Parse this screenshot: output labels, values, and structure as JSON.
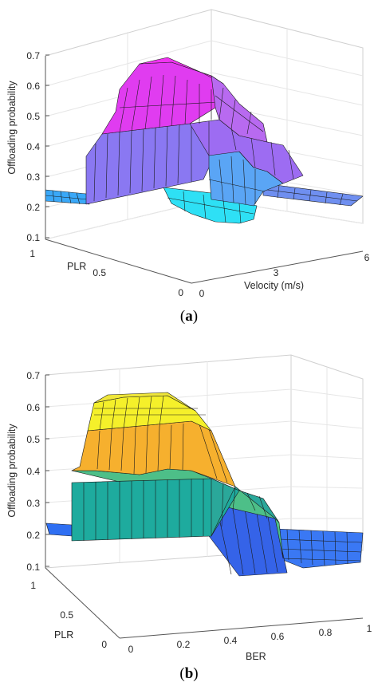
{
  "chart_data": [
    {
      "type": "surface",
      "panel": "(a)",
      "zlabel": "Offloading probability",
      "xlabel": "Velocity (m/s)",
      "ylabel": "PLR",
      "zticks": [
        "0.1",
        "0.2",
        "0.3",
        "0.4",
        "0.5",
        "0.6",
        "0.7"
      ],
      "xticks": [
        "0",
        "3",
        "6"
      ],
      "yticks": [
        "0",
        "0.5",
        "1"
      ],
      "zlim": [
        0.1,
        0.7
      ],
      "xlim": [
        0,
        6
      ],
      "ylim": [
        0,
        1
      ],
      "colormap": "cool",
      "grid": true,
      "surface_levels": [
        {
          "region": "low-PLR plateau / flat outskirts",
          "value": 0.25
        },
        {
          "region": "dip near mid velocity",
          "value": 0.16
        },
        {
          "region": "mid PLR band",
          "value": 0.42
        },
        {
          "region": "peak at high PLR, low-mid velocity",
          "value": 0.65
        }
      ]
    },
    {
      "type": "surface",
      "panel": "(b)",
      "zlabel": "Offloading probability",
      "xlabel": "BER",
      "ylabel": "PLR",
      "zticks": [
        "0.1",
        "0.2",
        "0.3",
        "0.4",
        "0.5",
        "0.6",
        "0.7"
      ],
      "xticks": [
        "0",
        "0.2",
        "0.4",
        "0.6",
        "0.8",
        "1"
      ],
      "yticks": [
        "0",
        "0.5",
        "1"
      ],
      "zlim": [
        0.1,
        0.7
      ],
      "xlim": [
        0,
        1
      ],
      "ylim": [
        0,
        1
      ],
      "colormap": "parula",
      "grid": true,
      "surface_levels": [
        {
          "region": "high BER flat region",
          "value": 0.22
        },
        {
          "region": "low PLR / low BER step",
          "value": 0.37
        },
        {
          "region": "mid PLR step",
          "value": 0.47
        },
        {
          "region": "high PLR plateau",
          "value": 0.62
        }
      ]
    }
  ],
  "captions": {
    "a_open": "(",
    "a_letter": "a",
    "a_close": ")",
    "b_open": "(",
    "b_letter": "b",
    "b_close": ")"
  }
}
